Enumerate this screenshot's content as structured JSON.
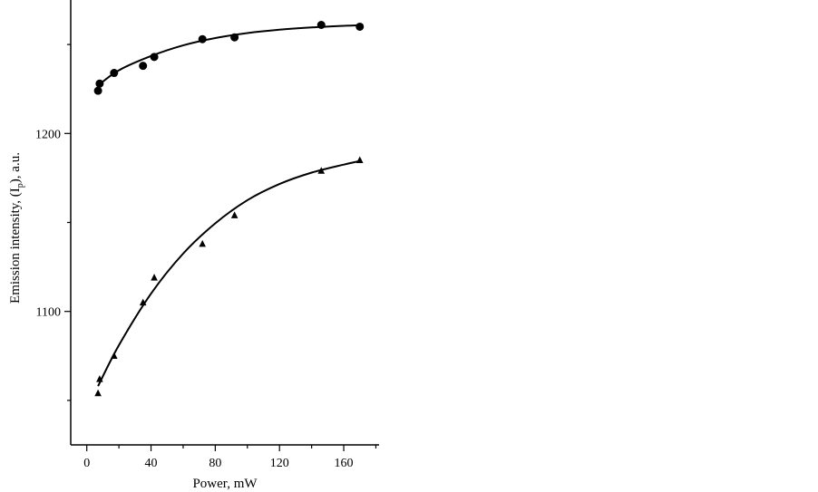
{
  "chart_data": {
    "type": "scatter",
    "title": "",
    "xlabel": "Power, mW",
    "ylabel_parts": {
      "before": "Emission intensity, (I",
      "sub": "p",
      "after": "), a.u."
    },
    "xlim": [
      -10,
      182
    ],
    "ylim": [
      1025,
      1275
    ],
    "xticks": [
      0,
      40,
      80,
      120,
      160
    ],
    "yticks": [
      1100,
      1200
    ],
    "grid": false,
    "series": [
      {
        "marker": "circle",
        "x": [
          7,
          8,
          17,
          35,
          42,
          72,
          92,
          146,
          170
        ],
        "y": [
          1224,
          1228,
          1234,
          1238,
          1243,
          1253,
          1254,
          1261,
          1260
        ],
        "fit": {
          "x": [
            7,
            20,
            40,
            60,
            80,
            100,
            120,
            140,
            160,
            170
          ],
          "y": [
            1227,
            1235.5,
            1243.5,
            1249.5,
            1253.6,
            1256.4,
            1258.3,
            1259.6,
            1260.5,
            1260.8
          ]
        }
      },
      {
        "marker": "triangle",
        "x": [
          7,
          8,
          17,
          35,
          42,
          72,
          92,
          146,
          170
        ],
        "y": [
          1054,
          1062,
          1075,
          1105,
          1119,
          1138,
          1154,
          1179,
          1185
        ],
        "fit": {
          "x": [
            7,
            20,
            40,
            60,
            80,
            100,
            120,
            140,
            160,
            170
          ],
          "y": [
            1058,
            1081,
            1110,
            1132.5,
            1149.5,
            1162.5,
            1171.6,
            1178,
            1182.5,
            1184.5
          ]
        }
      }
    ]
  }
}
